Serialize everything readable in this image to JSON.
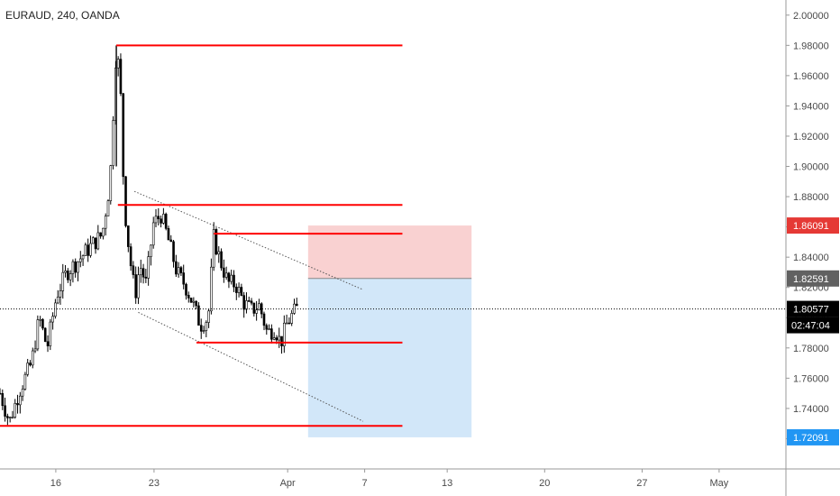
{
  "chart_data": {
    "type": "candlestick",
    "title": "EURAUD, 240, OANDA",
    "ylim": [
      1.7,
      2.01
    ],
    "xlim": [
      0.0,
      1.0
    ],
    "y_ticks": [
      "2.00000",
      "1.98000",
      "1.96000",
      "1.94000",
      "1.92000",
      "1.90000",
      "1.88000",
      "1.86000",
      "1.84000",
      "1.82000",
      "1.80000",
      "1.78000",
      "1.76000",
      "1.74000",
      "1.72000"
    ],
    "y_tick_values": [
      2.0,
      1.98,
      1.96,
      1.94,
      1.92,
      1.9,
      1.88,
      1.86,
      1.84,
      1.82,
      1.8,
      1.78,
      1.76,
      1.74,
      1.72
    ],
    "x_ticks": [
      {
        "label": "16",
        "x": 0.071
      },
      {
        "label": "23",
        "x": 0.196
      },
      {
        "label": "Apr",
        "x": 0.366
      },
      {
        "label": "7",
        "x": 0.464
      },
      {
        "label": "13",
        "x": 0.569
      },
      {
        "label": "20",
        "x": 0.693
      },
      {
        "label": "27",
        "x": 0.817
      },
      {
        "label": "May",
        "x": 0.915
      }
    ],
    "price_path": [
      {
        "x": 0.0,
        "y": 1.75
      },
      {
        "x": 0.012,
        "y": 1.731
      },
      {
        "x": 0.025,
        "y": 1.752
      },
      {
        "x": 0.04,
        "y": 1.77
      },
      {
        "x": 0.05,
        "y": 1.8
      },
      {
        "x": 0.06,
        "y": 1.78
      },
      {
        "x": 0.072,
        "y": 1.815
      },
      {
        "x": 0.085,
        "y": 1.83
      },
      {
        "x": 0.1,
        "y": 1.838
      },
      {
        "x": 0.115,
        "y": 1.847
      },
      {
        "x": 0.13,
        "y": 1.855
      },
      {
        "x": 0.14,
        "y": 1.89
      },
      {
        "x": 0.148,
        "y": 1.98
      },
      {
        "x": 0.153,
        "y": 1.955
      },
      {
        "x": 0.158,
        "y": 1.876
      },
      {
        "x": 0.165,
        "y": 1.84
      },
      {
        "x": 0.172,
        "y": 1.815
      },
      {
        "x": 0.178,
        "y": 1.835
      },
      {
        "x": 0.186,
        "y": 1.822
      },
      {
        "x": 0.195,
        "y": 1.862
      },
      {
        "x": 0.205,
        "y": 1.868
      },
      {
        "x": 0.215,
        "y": 1.85
      },
      {
        "x": 0.225,
        "y": 1.83
      },
      {
        "x": 0.235,
        "y": 1.822
      },
      {
        "x": 0.245,
        "y": 1.81
      },
      {
        "x": 0.255,
        "y": 1.795
      },
      {
        "x": 0.265,
        "y": 1.8
      },
      {
        "x": 0.272,
        "y": 1.853
      },
      {
        "x": 0.28,
        "y": 1.838
      },
      {
        "x": 0.29,
        "y": 1.823
      },
      {
        "x": 0.3,
        "y": 1.822
      },
      {
        "x": 0.31,
        "y": 1.81
      },
      {
        "x": 0.32,
        "y": 1.805
      },
      {
        "x": 0.33,
        "y": 1.808
      },
      {
        "x": 0.34,
        "y": 1.79
      },
      {
        "x": 0.35,
        "y": 1.793
      },
      {
        "x": 0.357,
        "y": 1.783
      },
      {
        "x": 0.365,
        "y": 1.796
      },
      {
        "x": 0.372,
        "y": 1.802
      },
      {
        "x": 0.378,
        "y": 1.806
      }
    ],
    "horizontal_levels": [
      {
        "y": 1.98,
        "x_start": 0.148,
        "x_end": 0.512
      },
      {
        "y": 1.8745,
        "x_start": 0.15,
        "x_end": 0.512
      },
      {
        "y": 1.8555,
        "x_start": 0.272,
        "x_end": 0.512
      },
      {
        "y": 1.7835,
        "x_start": 0.25,
        "x_end": 0.512
      },
      {
        "y": 1.7285,
        "x_start": 0.0,
        "x_end": 0.512
      }
    ],
    "channel_lines": [
      {
        "x1": 0.171,
        "y1": 1.8835,
        "x2": 0.462,
        "y2": 1.8185
      },
      {
        "x1": 0.176,
        "y1": 1.8035,
        "x2": 0.462,
        "y2": 1.7315
      }
    ],
    "position": {
      "x_start": 0.392,
      "x_end": 0.6,
      "stop": 1.86091,
      "entry": 1.82591,
      "target": 1.72091
    },
    "current_price": 1.80577,
    "price_badges": [
      {
        "label": "1.86091",
        "y": 1.86091,
        "color": "#e53935"
      },
      {
        "label": "1.82591",
        "y": 1.82591,
        "color": "#616161"
      },
      {
        "label": "1.80577",
        "y": 1.80577,
        "color": "#000000"
      },
      {
        "label": "1.72091",
        "y": 1.72091,
        "color": "#2196f3"
      }
    ],
    "countdown": "02:47:04",
    "colors": {
      "level": "#ff0000",
      "candle": "#000000",
      "stop_zone": "#f9d1d1",
      "target_zone": "#d2e7f9",
      "channel": "#555555"
    }
  }
}
